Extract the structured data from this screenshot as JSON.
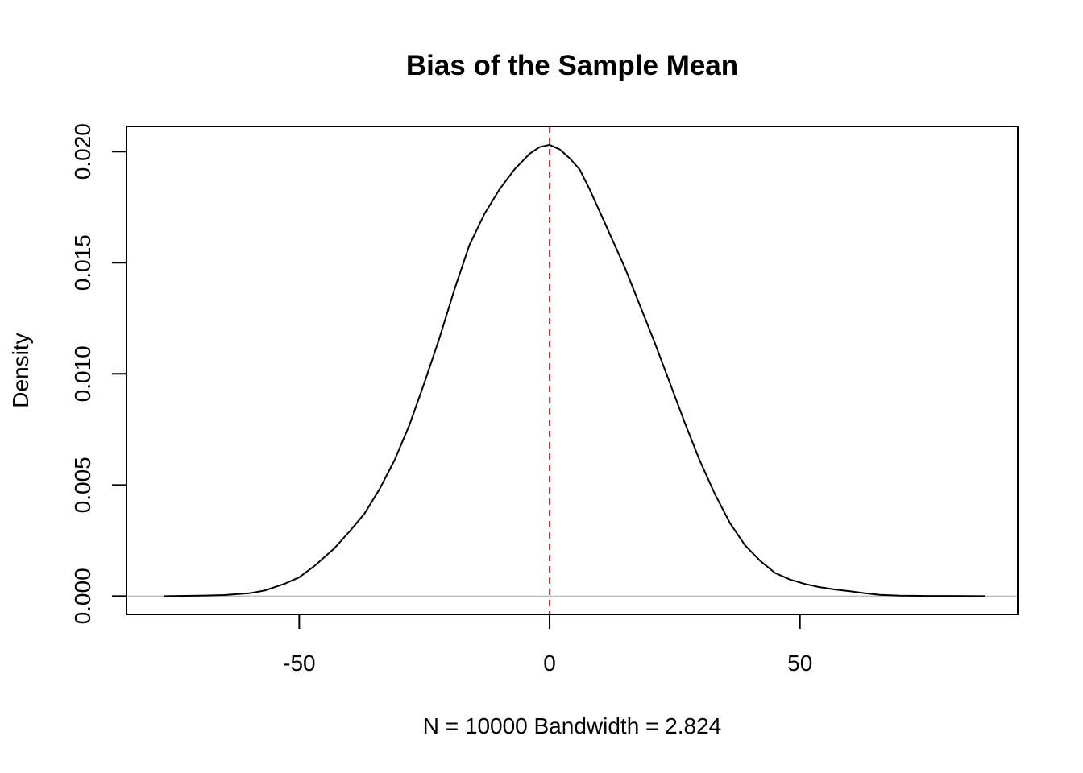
{
  "chart_data": {
    "type": "line",
    "title": "Bias of the Sample Mean",
    "xlabel": "N = 10000   Bandwidth = 2.824",
    "ylabel": "Density",
    "xlim": [
      -84.5,
      93.5
    ],
    "ylim": [
      -0.00082,
      0.02113
    ],
    "x_ticks": [
      -50,
      0,
      50
    ],
    "x_tick_labels": [
      "-50",
      "0",
      "50"
    ],
    "y_ticks": [
      0,
      0.005,
      0.01,
      0.015,
      0.02
    ],
    "y_tick_labels": [
      "0.000",
      "0.005",
      "0.010",
      "0.015",
      "0.020"
    ],
    "grid": false,
    "series": [
      {
        "name": "density",
        "color": "#000000",
        "x": [
          -77,
          -70,
          -65,
          -60,
          -57,
          -53,
          -50,
          -47,
          -43,
          -40,
          -37,
          -34,
          -31,
          -28,
          -25,
          -22,
          -19,
          -16,
          -13,
          -10,
          -7,
          -4,
          -2,
          0,
          2,
          4,
          6,
          8,
          10,
          12,
          15,
          18,
          21,
          24,
          27,
          30,
          33,
          36,
          39,
          42,
          45,
          48,
          51,
          54,
          57,
          60,
          63,
          66,
          70,
          75,
          80,
          87
        ],
        "y": [
          0.0,
          2e-05,
          5e-05,
          0.00013,
          0.00025,
          0.00055,
          0.00085,
          0.00135,
          0.00215,
          0.0029,
          0.0037,
          0.0048,
          0.0061,
          0.0077,
          0.0096,
          0.0116,
          0.0138,
          0.0158,
          0.0172,
          0.0183,
          0.0192,
          0.0199,
          0.0202,
          0.0203,
          0.0201,
          0.0197,
          0.0192,
          0.0183,
          0.0173,
          0.0163,
          0.0148,
          0.0131,
          0.0114,
          0.0096,
          0.0078,
          0.0061,
          0.0046,
          0.0033,
          0.0023,
          0.0016,
          0.00105,
          0.00075,
          0.00055,
          0.0004,
          0.0003,
          0.00022,
          0.00013,
          6e-05,
          2e-05,
          1e-05,
          1e-05,
          0.0
        ]
      }
    ],
    "reference_lines": [
      {
        "orientation": "vertical",
        "value": 0,
        "color": "#d62728",
        "style": "dashed"
      },
      {
        "orientation": "horizontal",
        "value": 0,
        "color": "#bebebe",
        "style": "solid"
      }
    ]
  }
}
